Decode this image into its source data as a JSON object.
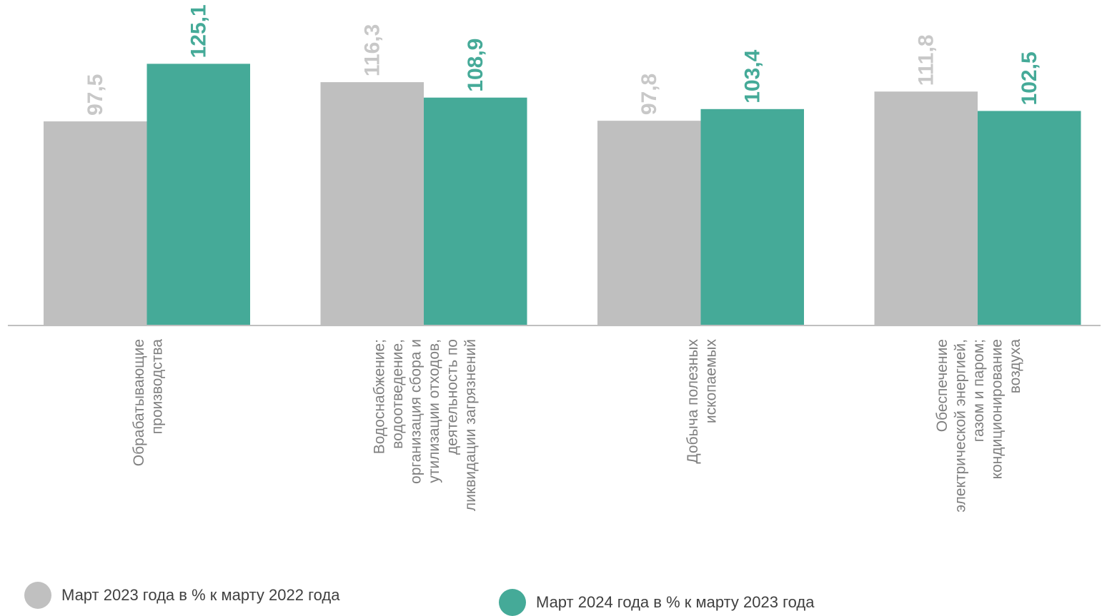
{
  "chart_data": {
    "type": "bar",
    "categories": [
      [
        "Обрабатывающие",
        "производства"
      ],
      [
        "Водоснабжение;",
        "водоотведение,",
        "организация сбора и",
        "утилизации отходов,",
        "деятельность по",
        "ликвидации загрязнений"
      ],
      [
        "Добыча полезных",
        "ископаемых"
      ],
      [
        "Обеспечение",
        "электрической энергией,",
        "газом и паром;",
        "кондиционирование",
        "воздуха"
      ]
    ],
    "series": [
      {
        "name": "Март 2023 года в % к марту 2022 года",
        "values": [
          97.5,
          116.3,
          97.8,
          111.8
        ],
        "labels": [
          "97,5",
          "116,3",
          "97,8",
          "111,8"
        ],
        "color": "#bfbfbf",
        "label_color": "#c8c8c8"
      },
      {
        "name": "Март 2024 года в % к марту 2023 года",
        "values": [
          125.1,
          108.9,
          103.4,
          102.5
        ],
        "labels": [
          "125,1",
          "108,9",
          "103,4",
          "102,5"
        ],
        "color": "#45aa98",
        "label_color": "#45aa98"
      }
    ],
    "ylim": [
      0,
      142
    ],
    "grid": false,
    "legend_position": "bottom"
  }
}
